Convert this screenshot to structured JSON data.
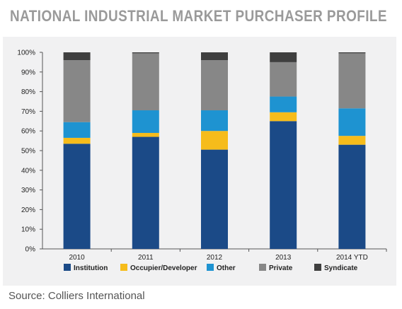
{
  "title": "NATIONAL INDUSTRIAL MARKET PURCHASER PROFILE",
  "source": "Source: Colliers International",
  "chart_data": {
    "type": "bar",
    "stacked": true,
    "categories": [
      "2010",
      "2011",
      "2012",
      "2013",
      "2014 YTD"
    ],
    "y_ticks": [
      "0%",
      "10%",
      "20%",
      "30%",
      "40%",
      "50%",
      "60%",
      "70%",
      "80%",
      "90%",
      "100%"
    ],
    "ylim": [
      0,
      100
    ],
    "grid": false,
    "legend_position": "bottom",
    "series": [
      {
        "name": "Institution",
        "color": "#1b4a87",
        "values": [
          53.5,
          57,
          50.5,
          65,
          53
        ]
      },
      {
        "name": "Occupier/Developer",
        "color": "#f6bc1b",
        "values": [
          3,
          2,
          9.5,
          4.5,
          4.5
        ]
      },
      {
        "name": "Other",
        "color": "#1e93d1",
        "values": [
          8,
          11.5,
          10.5,
          8,
          14
        ]
      },
      {
        "name": "Private",
        "color": "#878787",
        "values": [
          31.5,
          29,
          25.5,
          17.5,
          28
        ]
      },
      {
        "name": "Syndicate",
        "color": "#3f3f3f",
        "values": [
          4,
          0.5,
          4,
          5,
          0.5
        ]
      }
    ]
  }
}
